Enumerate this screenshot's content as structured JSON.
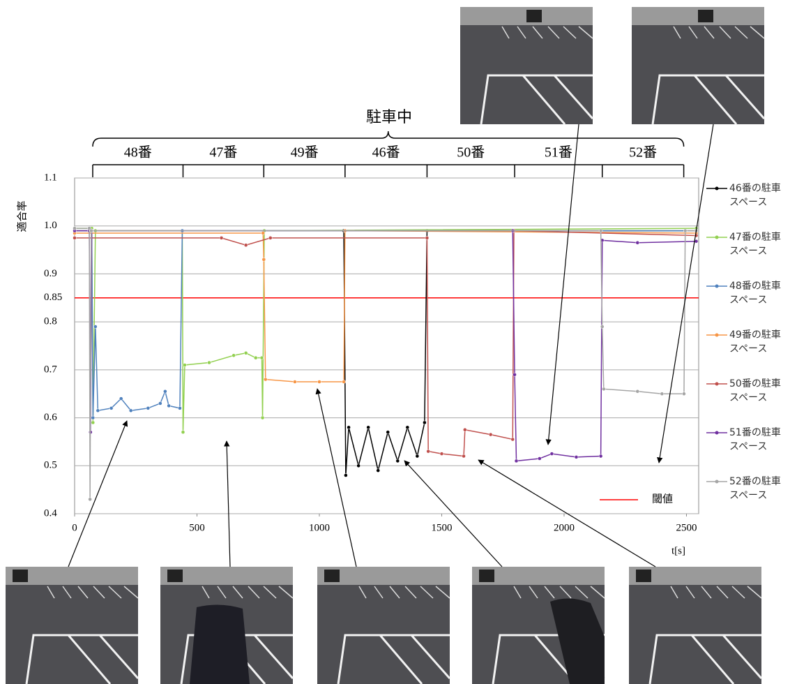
{
  "chart_data": {
    "type": "line",
    "bracket_label": "駐車中",
    "periods": [
      {
        "label": "48番",
        "start": 74,
        "end": 443
      },
      {
        "label": "47番",
        "start": 443,
        "end": 773
      },
      {
        "label": "49番",
        "start": 773,
        "end": 1105
      },
      {
        "label": "46番",
        "start": 1105,
        "end": 1440
      },
      {
        "label": "50番",
        "start": 1440,
        "end": 1798
      },
      {
        "label": "51番",
        "start": 1798,
        "end": 2156
      },
      {
        "label": "52番",
        "start": 2156,
        "end": 2489
      }
    ],
    "y_label": "適合率",
    "x_label": "t[s]",
    "xlim": [
      0,
      2550
    ],
    "xticks": [
      0,
      500,
      1000,
      1500,
      2000,
      2500
    ],
    "ylim": [
      0.4,
      1.1
    ],
    "yticks": [
      0.4,
      0.5,
      0.6,
      0.7,
      0.8,
      0.85,
      0.9,
      {
        "value": 1.0,
        "label": "1.0"
      },
      1.1
    ],
    "grid": true,
    "threshold": {
      "value": 0.85,
      "label": "閾値",
      "color": "#ff0000"
    },
    "series": [
      {
        "name": "46番の駐車スペース",
        "color": "#000000",
        "x": [
          0,
          1100,
          1108,
          1120,
          1160,
          1200,
          1240,
          1280,
          1320,
          1360,
          1400,
          1430,
          1440,
          2540
        ],
        "values": [
          0.99,
          0.99,
          0.48,
          0.58,
          0.5,
          0.58,
          0.49,
          0.57,
          0.51,
          0.58,
          0.52,
          0.59,
          0.99,
          0.99
        ]
      },
      {
        "name": "47番の駐車スペース",
        "color": "#92d050",
        "x": [
          0,
          70,
          75,
          85,
          440,
          443,
          450,
          550,
          650,
          700,
          740,
          765,
          768,
          775,
          2540
        ],
        "values": [
          0.995,
          0.995,
          0.59,
          0.99,
          0.99,
          0.57,
          0.71,
          0.715,
          0.73,
          0.735,
          0.725,
          0.725,
          0.6,
          0.99,
          0.995
        ]
      },
      {
        "name": "48番の駐車スペース",
        "color": "#4f81bd",
        "x": [
          0,
          70,
          75,
          85,
          95,
          150,
          190,
          230,
          300,
          350,
          370,
          385,
          430,
          440,
          2540
        ],
        "values": [
          0.99,
          0.99,
          0.6,
          0.79,
          0.615,
          0.62,
          0.64,
          0.615,
          0.62,
          0.63,
          0.655,
          0.625,
          0.62,
          0.99,
          0.99
        ]
      },
      {
        "name": "49番の駐車スペース",
        "color": "#f79646",
        "x": [
          0,
          770,
          773,
          780,
          900,
          1000,
          1100,
          1105,
          2540
        ],
        "values": [
          0.985,
          0.985,
          0.93,
          0.68,
          0.675,
          0.675,
          0.675,
          0.99,
          0.985
        ]
      },
      {
        "name": "50番の駐車スペース",
        "color": "#c0504d",
        "x": [
          0,
          600,
          700,
          800,
          1440,
          1445,
          1500,
          1590,
          1595,
          1700,
          1790,
          1795,
          2540
        ],
        "values": [
          0.975,
          0.975,
          0.96,
          0.975,
          0.975,
          0.53,
          0.525,
          0.52,
          0.575,
          0.565,
          0.555,
          0.99,
          0.98
        ]
      },
      {
        "name": "51番の駐車スペース",
        "color": "#7030a0",
        "x": [
          0,
          60,
          65,
          70,
          1790,
          1798,
          1805,
          1900,
          1950,
          2050,
          2150,
          2156,
          2300,
          2540
        ],
        "values": [
          0.99,
          0.99,
          0.57,
          0.99,
          0.99,
          0.69,
          0.51,
          0.515,
          0.525,
          0.518,
          0.52,
          0.97,
          0.965,
          0.968
        ]
      },
      {
        "name": "52番の駐車スペース",
        "color": "#a5a5a5",
        "x": [
          0,
          60,
          63,
          68,
          2150,
          2156,
          2162,
          2300,
          2400,
          2490,
          2495,
          2540
        ],
        "values": [
          0.995,
          0.995,
          0.43,
          0.99,
          0.99,
          0.79,
          0.66,
          0.655,
          0.65,
          0.65,
          0.99,
          0.99
        ]
      }
    ]
  }
}
